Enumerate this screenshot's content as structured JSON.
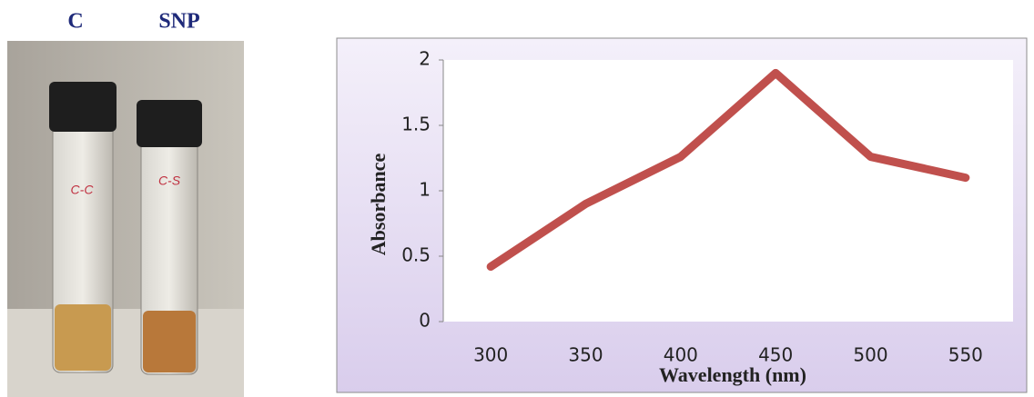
{
  "photo": {
    "labels": [
      "C",
      "SNP"
    ],
    "vial_labels": [
      "C-C",
      "C-S"
    ]
  },
  "chart_data": {
    "type": "line",
    "x_label": "Wavelength (nm)",
    "y_label": "Absorbance",
    "categories": [
      "300",
      "350",
      "400",
      "450",
      "500",
      "550"
    ],
    "values": [
      0.42,
      0.9,
      1.26,
      1.9,
      1.26,
      1.1
    ],
    "color": "#c0504d",
    "ylim": [
      0,
      2
    ],
    "yticks": [
      0,
      0.5,
      1,
      1.5,
      2
    ],
    "grid": false
  }
}
